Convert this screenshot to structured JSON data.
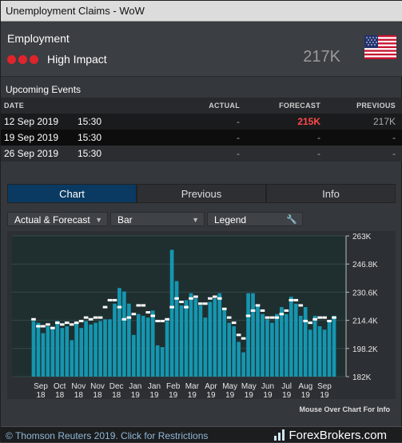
{
  "window": {
    "title": "Unemployment Claims - WoW"
  },
  "header": {
    "category": "Employment",
    "impact_label": "High Impact",
    "latest_value": "217K",
    "colors": {
      "impact_dot": "#e0242b",
      "forecast_highlight": "#ff4a4a",
      "tab_active": "#0a3a62",
      "bar": "#1596b0",
      "marker": "#ffffff"
    }
  },
  "upcoming": {
    "title": "Upcoming Events",
    "columns": [
      "DATE",
      "",
      "ACTUAL",
      "FORECAST",
      "PREVIOUS"
    ],
    "rows": [
      {
        "date": "12 Sep 2019",
        "time": "15:30",
        "actual": "-",
        "forecast": "215K",
        "previous": "217K"
      },
      {
        "date": "19 Sep 2019",
        "time": "15:30",
        "actual": "-",
        "forecast": "-",
        "previous": "-"
      },
      {
        "date": "26 Sep 2019",
        "time": "15:30",
        "actual": "-",
        "forecast": "-",
        "previous": "-"
      }
    ]
  },
  "tabs": [
    "Chart",
    "Previous",
    "Info"
  ],
  "controls": {
    "series_select": "Actual & Forecast",
    "type_select": "Bar",
    "legend_button": "Legend"
  },
  "chart_data": {
    "type": "bar",
    "y_axis_ticks": [
      "263K",
      "246.8K",
      "230.6K",
      "214.4K",
      "198.2K",
      "182K"
    ],
    "ylim": [
      182,
      263
    ],
    "x_tick_labels": [
      [
        "Sep",
        "18"
      ],
      [
        "Oct",
        "18"
      ],
      [
        "Nov",
        "18"
      ],
      [
        "Nov",
        "18"
      ],
      [
        "Dec",
        "18"
      ],
      [
        "Jan",
        "19"
      ],
      [
        "Jan",
        "19"
      ],
      [
        "Feb",
        "19"
      ],
      [
        "Mar",
        "19"
      ],
      [
        "Apr",
        "19"
      ],
      [
        "May",
        "19"
      ],
      [
        "May",
        "19"
      ],
      [
        "Jun",
        "19"
      ],
      [
        "Jul",
        "19"
      ],
      [
        "Aug",
        "19"
      ],
      [
        "Sep",
        "19"
      ]
    ],
    "series": [
      {
        "name": "Actual",
        "values": [
          214,
          213,
          207,
          211,
          210,
          214,
          210,
          211,
          203,
          213,
          210,
          214,
          212,
          213,
          214,
          215,
          215,
          224,
          233,
          231,
          224,
          206,
          218,
          217,
          216,
          220,
          200,
          199,
          214,
          255,
          237,
          223,
          226,
          230,
          227,
          223,
          216,
          225,
          227,
          230,
          221,
          213,
          211,
          202,
          196,
          230,
          230,
          223,
          218,
          215,
          213,
          218,
          222,
          218,
          228,
          224,
          217,
          222,
          209,
          217,
          211,
          209,
          214,
          217
        ]
      },
      {
        "name": "Forecast",
        "values": [
          215,
          211,
          211,
          212,
          210,
          213,
          212,
          213,
          212,
          213,
          214,
          216,
          215,
          216,
          216,
          222,
          226,
          226,
          222,
          215,
          216,
          218,
          223,
          223,
          219,
          217,
          214,
          214,
          215,
          222,
          227,
          225,
          222,
          227,
          228,
          224,
          224,
          227,
          228,
          227,
          221,
          216,
          213,
          206,
          204,
          217,
          220,
          223,
          220,
          216,
          216,
          216,
          218,
          220,
          226,
          226,
          223,
          214,
          213,
          215,
          216,
          216,
          214,
          216
        ]
      }
    ]
  },
  "chart": {
    "footnote": "Mouse Over Chart For Info"
  },
  "footer": {
    "copyright": "© Thomson Reuters 2019. Click for Restrictions",
    "brand": "ForexBrokers.com"
  }
}
